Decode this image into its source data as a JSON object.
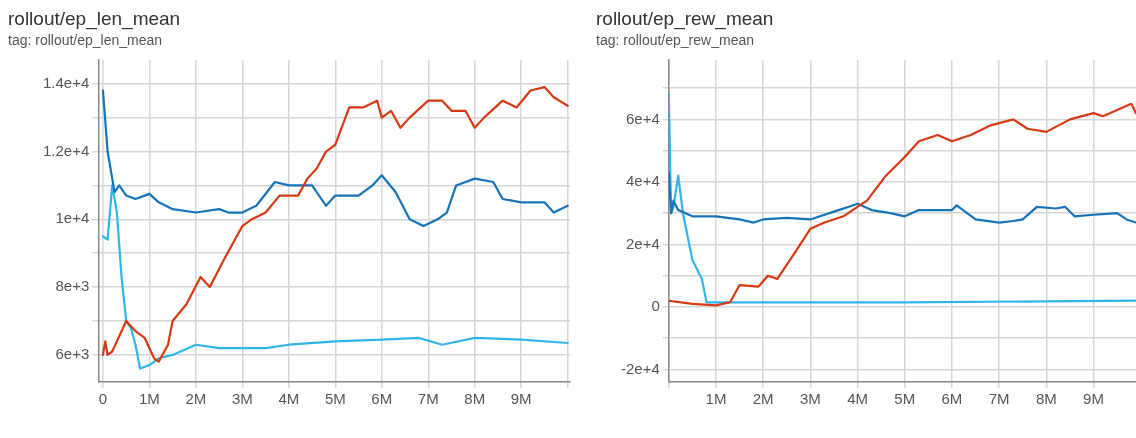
{
  "chart_data": [
    {
      "type": "line",
      "title": "rollout/ep_len_mean",
      "subtitle": "tag: rollout/ep_len_mean",
      "grid": true,
      "legend": false,
      "line_style": "solid",
      "xlim": [
        -100000,
        10050000
      ],
      "ylim": [
        5200,
        14700
      ],
      "xticks": [
        {
          "value": 0,
          "label": "0"
        },
        {
          "value": 1000000,
          "label": "1M"
        },
        {
          "value": 2000000,
          "label": "2M"
        },
        {
          "value": 3000000,
          "label": "3M"
        },
        {
          "value": 4000000,
          "label": "4M"
        },
        {
          "value": 5000000,
          "label": "5M"
        },
        {
          "value": 6000000,
          "label": "6M"
        },
        {
          "value": 7000000,
          "label": "7M"
        },
        {
          "value": 8000000,
          "label": "8M"
        },
        {
          "value": 9000000,
          "label": "9M"
        },
        {
          "value": 10000000,
          "label": null
        }
      ],
      "yticks": [
        {
          "value": 6000,
          "label": "6e+3"
        },
        {
          "value": 7000,
          "label": null
        },
        {
          "value": 8000,
          "label": "8e+3"
        },
        {
          "value": 9000,
          "label": null
        },
        {
          "value": 10000,
          "label": "1e+4"
        },
        {
          "value": 11000,
          "label": null
        },
        {
          "value": 12000,
          "label": "1.2e+4"
        },
        {
          "value": 13000,
          "label": null
        },
        {
          "value": 14000,
          "label": "1.4e+4"
        }
      ],
      "series": [
        {
          "color": "#d63a12",
          "x": [
            0,
            50000,
            100000,
            200000,
            500000,
            700000,
            900000,
            1100000,
            1200000,
            1400000,
            1500000,
            1800000,
            2100000,
            2300000,
            2600000,
            3000000,
            3200000,
            3500000,
            3800000,
            4000000,
            4200000,
            4400000,
            4600000,
            4800000,
            5000000,
            5300000,
            5600000,
            5900000,
            6000000,
            6200000,
            6400000,
            6600000,
            7000000,
            7300000,
            7500000,
            7800000,
            8000000,
            8200000,
            8600000,
            8900000,
            9200000,
            9500000,
            9700000,
            10000000
          ],
          "values": [
            6000,
            6400,
            6000,
            6100,
            7000,
            6700,
            6500,
            5900,
            5800,
            6300,
            7000,
            7500,
            8300,
            8000,
            8800,
            9800,
            10000,
            10200,
            10700,
            10700,
            10700,
            11200,
            11500,
            12000,
            12200,
            13300,
            13300,
            13500,
            13000,
            13200,
            12700,
            13000,
            13500,
            13500,
            13200,
            13200,
            12700,
            13000,
            13500,
            13300,
            13800,
            13900,
            13600,
            13350
          ]
        },
        {
          "color": "#1673b8",
          "x": [
            0,
            100000,
            250000,
            350000,
            500000,
            700000,
            1000000,
            1200000,
            1500000,
            2000000,
            2500000,
            2700000,
            3000000,
            3300000,
            3700000,
            4000000,
            4500000,
            4800000,
            5000000,
            5500000,
            5800000,
            6000000,
            6300000,
            6600000,
            6900000,
            7200000,
            7400000,
            7600000,
            8000000,
            8400000,
            8600000,
            9000000,
            9500000,
            9700000,
            10000000
          ],
          "values": [
            13800,
            12000,
            10800,
            11000,
            10700,
            10600,
            10750,
            10500,
            10300,
            10200,
            10300,
            10200,
            10200,
            10400,
            11100,
            11000,
            11000,
            10400,
            10700,
            10700,
            11000,
            11300,
            10800,
            10000,
            9800,
            10000,
            10200,
            11000,
            11200,
            11100,
            10600,
            10500,
            10500,
            10200,
            10400
          ]
        },
        {
          "color": "#2fb5ea",
          "x": [
            0,
            100000,
            200000,
            300000,
            400000,
            500000,
            600000,
            700000,
            800000,
            1000000,
            1200000,
            1500000,
            2000000,
            2500000,
            3000000,
            3500000,
            4000000,
            5000000,
            6000000,
            6800000,
            7300000,
            8000000,
            9000000,
            10000000
          ],
          "values": [
            9500,
            9400,
            11000,
            10200,
            8300,
            7000,
            6800,
            6300,
            5600,
            5700,
            5900,
            6000,
            6300,
            6200,
            6200,
            6200,
            6300,
            6400,
            6450,
            6500,
            6300,
            6500,
            6450,
            6350
          ]
        }
      ]
    },
    {
      "type": "line",
      "title": "rollout/ep_rew_mean",
      "subtitle": "tag: rollout/ep_rew_mean",
      "grid": true,
      "legend": false,
      "line_style": "solid",
      "xlim": [
        0,
        9900000
      ],
      "ylim": [
        -24000,
        79000
      ],
      "xticks": [
        {
          "value": 0,
          "label": null
        },
        {
          "value": 1000000,
          "label": "1M"
        },
        {
          "value": 2000000,
          "label": "2M"
        },
        {
          "value": 3000000,
          "label": "3M"
        },
        {
          "value": 4000000,
          "label": "4M"
        },
        {
          "value": 5000000,
          "label": "5M"
        },
        {
          "value": 6000000,
          "label": "6M"
        },
        {
          "value": 7000000,
          "label": "7M"
        },
        {
          "value": 8000000,
          "label": "8M"
        },
        {
          "value": 9000000,
          "label": "9M"
        }
      ],
      "yticks": [
        {
          "value": -20000,
          "label": "-2e+4"
        },
        {
          "value": -10000,
          "label": null
        },
        {
          "value": 0,
          "label": "0"
        },
        {
          "value": 10000,
          "label": null
        },
        {
          "value": 20000,
          "label": "2e+4"
        },
        {
          "value": 30000,
          "label": null
        },
        {
          "value": 40000,
          "label": "4e+4"
        },
        {
          "value": 50000,
          "label": null
        },
        {
          "value": 60000,
          "label": "6e+4"
        },
        {
          "value": 70000,
          "label": null
        }
      ],
      "series": [
        {
          "color": "#d63a12",
          "x": [
            0,
            500000,
            1000000,
            1300000,
            1500000,
            1900000,
            2100000,
            2300000,
            2700000,
            3000000,
            3300000,
            3700000,
            4000000,
            4200000,
            4600000,
            5000000,
            5300000,
            5700000,
            6000000,
            6400000,
            6800000,
            7300000,
            7600000,
            8000000,
            8500000,
            9000000,
            9200000,
            9500000,
            9800000,
            9900000
          ],
          "values": [
            2000,
            1000,
            500,
            1500,
            7000,
            6500,
            10000,
            9000,
            18000,
            25000,
            27000,
            29000,
            32000,
            34000,
            42000,
            48000,
            53000,
            55000,
            53000,
            55000,
            58000,
            60000,
            57000,
            56000,
            60000,
            62000,
            61000,
            63000,
            65000,
            62000
          ]
        },
        {
          "color": "#1673b8",
          "x": [
            0,
            50000,
            100000,
            200000,
            500000,
            1000000,
            1500000,
            1800000,
            2000000,
            2500000,
            3000000,
            3500000,
            3800000,
            4000000,
            4300000,
            4700000,
            5000000,
            5300000,
            6000000,
            6100000,
            6500000,
            7000000,
            7300000,
            7500000,
            7800000,
            8200000,
            8400000,
            8600000,
            9000000,
            9500000,
            9700000,
            9900000
          ],
          "values": [
            43000,
            30000,
            34000,
            31000,
            29000,
            29000,
            28000,
            27000,
            28000,
            28500,
            28000,
            30500,
            32000,
            33000,
            31000,
            30000,
            29000,
            31000,
            31000,
            32500,
            28000,
            27000,
            27500,
            28000,
            32000,
            31500,
            32000,
            29000,
            29500,
            30000,
            28000,
            27000
          ]
        },
        {
          "color": "#2fb5ea",
          "x": [
            0,
            50000,
            100000,
            200000,
            300000,
            500000,
            700000,
            800000,
            1000000,
            5000000,
            9900000
          ],
          "values": [
            68000,
            30000,
            32000,
            42000,
            30000,
            15000,
            9000,
            1500,
            1500,
            1500,
            2000
          ]
        }
      ]
    }
  ]
}
